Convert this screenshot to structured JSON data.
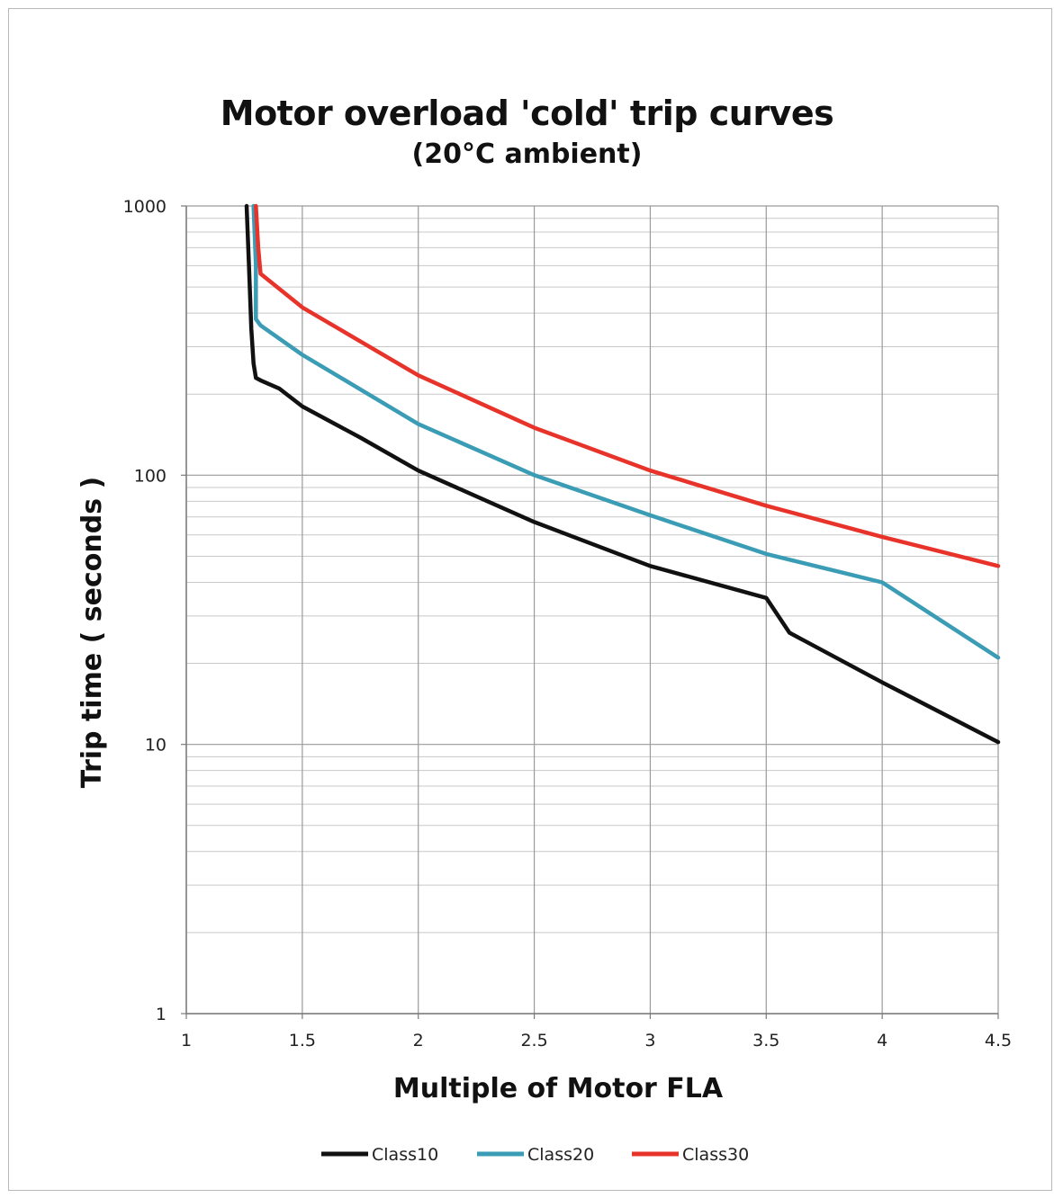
{
  "chart_data": {
    "type": "line",
    "title": "Motor overload 'cold' trip curves",
    "subtitle": "(20°C ambient)",
    "xlabel": "Multiple of Motor FLA",
    "ylabel": "Trip time ( seconds )",
    "xlim": [
      1,
      4.5
    ],
    "ylim": [
      1,
      1000
    ],
    "yscale": "log",
    "grid": true,
    "legend_position": "bottom",
    "x_ticks": [
      "1",
      "1.5",
      "2",
      "2.5",
      "3",
      "3.5",
      "4",
      "4.5"
    ],
    "y_ticks": [
      "1",
      "10",
      "100",
      "1000"
    ],
    "series": [
      {
        "name": "Class10",
        "color": "#111111",
        "x": [
          1.26,
          1.27,
          1.28,
          1.29,
          1.3,
          1.32,
          1.4,
          1.5,
          1.75,
          2.0,
          2.5,
          3.0,
          3.5,
          3.6,
          4.0,
          4.5
        ],
        "y": [
          1000,
          600,
          350,
          260,
          230,
          225,
          210,
          180,
          138,
          104,
          67,
          46,
          35,
          26,
          17,
          10.2
        ]
      },
      {
        "name": "Class20",
        "color": "#3a9cb5",
        "x": [
          1.29,
          1.3,
          1.3,
          1.32,
          1.5,
          2.0,
          2.5,
          3.0,
          3.5,
          4.0,
          4.5
        ],
        "y": [
          1000,
          600,
          380,
          360,
          280,
          155,
          100,
          71,
          51,
          40,
          21
        ]
      },
      {
        "name": "Class30",
        "color": "#e8332a",
        "x": [
          1.3,
          1.31,
          1.32,
          1.5,
          2.0,
          2.5,
          3.0,
          3.5,
          4.0,
          4.5
        ],
        "y": [
          1000,
          700,
          560,
          420,
          235,
          150,
          104,
          77,
          59,
          46
        ]
      }
    ]
  }
}
